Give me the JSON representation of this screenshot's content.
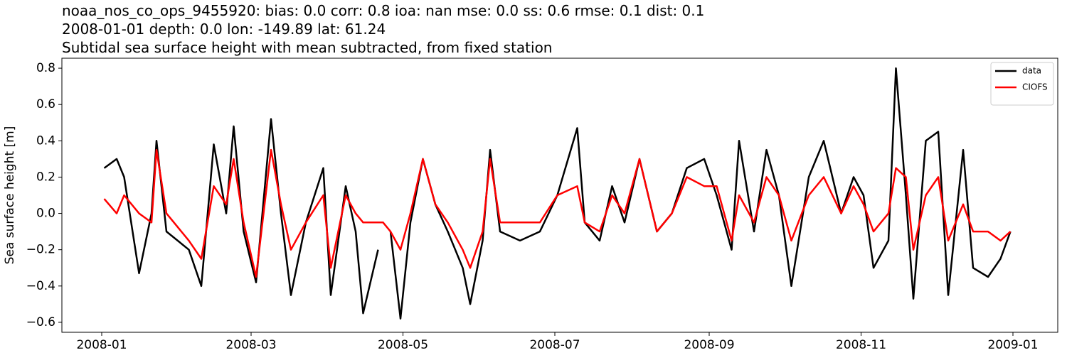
{
  "chart_data": {
    "type": "line",
    "title": [
      "noaa_nos_co_ops_9455920: bias: 0.0  corr: 0.8  ioa: nan  mse: 0.0  ss: 0.6  rmse: 0.1  dist: 0.1",
      "2008-01-01 depth: 0.0 lon: -149.89 lat: 61.24",
      "Subtidal sea surface height with mean subtracted, from fixed station"
    ],
    "y_label": "Sea surface height [m]",
    "x": [
      1,
      6,
      9,
      15,
      20,
      22,
      26,
      35,
      40,
      45,
      50,
      53,
      57,
      62,
      68,
      72,
      76,
      82,
      89,
      92,
      98,
      102,
      105,
      111,
      113,
      116,
      120,
      124,
      129,
      134,
      139,
      145,
      148,
      153,
      156,
      160,
      168,
      176,
      183,
      191,
      194,
      200,
      205,
      210,
      216,
      223,
      229,
      235,
      242,
      247,
      253,
      256,
      262,
      267,
      272,
      277,
      284,
      290,
      297,
      302,
      306,
      310,
      316,
      319,
      323,
      326,
      331,
      336,
      340,
      346,
      350,
      356,
      361,
      365
    ],
    "series": [
      {
        "name": "data",
        "color": "#000000",
        "values": [
          0.25,
          0.3,
          0.2,
          -0.33,
          0.0,
          0.4,
          -0.1,
          -0.2,
          -0.4,
          0.38,
          0.0,
          0.48,
          -0.1,
          -0.38,
          0.52,
          0.0,
          -0.45,
          -0.05,
          0.25,
          -0.45,
          0.15,
          -0.1,
          -0.55,
          -0.2,
          null,
          -0.1,
          -0.58,
          -0.05,
          0.3,
          0.05,
          -0.1,
          -0.3,
          -0.5,
          -0.15,
          0.35,
          -0.1,
          -0.15,
          -0.1,
          0.1,
          0.47,
          -0.05,
          -0.15,
          0.15,
          -0.05,
          0.3,
          -0.1,
          0.0,
          0.25,
          0.3,
          0.1,
          -0.2,
          0.4,
          -0.1,
          0.35,
          0.1,
          -0.4,
          0.2,
          0.4,
          0.0,
          0.2,
          0.1,
          -0.3,
          -0.15,
          0.8,
          0.1,
          -0.47,
          0.4,
          0.45,
          -0.45,
          0.35,
          -0.3,
          -0.35,
          -0.25,
          -0.1
        ]
      },
      {
        "name": "CIOFS",
        "color": "#ff0000",
        "values": [
          0.08,
          0.0,
          0.1,
          0.0,
          -0.05,
          0.35,
          0.0,
          -0.15,
          -0.25,
          0.15,
          0.05,
          0.3,
          -0.05,
          -0.35,
          0.35,
          0.05,
          -0.2,
          -0.05,
          0.1,
          -0.3,
          0.1,
          0.0,
          -0.05,
          -0.05,
          -0.05,
          -0.1,
          -0.2,
          0.0,
          0.3,
          0.05,
          -0.05,
          -0.2,
          -0.3,
          -0.1,
          0.3,
          -0.05,
          -0.05,
          -0.05,
          0.1,
          0.15,
          -0.05,
          -0.1,
          0.1,
          0.0,
          0.3,
          -0.1,
          0.0,
          0.2,
          0.15,
          0.15,
          -0.15,
          0.1,
          -0.05,
          0.2,
          0.1,
          -0.15,
          0.1,
          0.2,
          0.0,
          0.15,
          0.05,
          -0.1,
          0.0,
          0.25,
          0.2,
          -0.2,
          0.1,
          0.2,
          -0.15,
          0.05,
          -0.1,
          -0.1,
          -0.15,
          -0.1
        ]
      }
    ],
    "xlim": [
      -16,
      384
    ],
    "xticks": [
      {
        "value": 0,
        "label": "2008-01"
      },
      {
        "value": 60,
        "label": "2008-03"
      },
      {
        "value": 121,
        "label": "2008-05"
      },
      {
        "value": 182,
        "label": "2008-07"
      },
      {
        "value": 244,
        "label": "2008-09"
      },
      {
        "value": 305,
        "label": "2008-11"
      },
      {
        "value": 366,
        "label": "2009-01"
      }
    ],
    "ylim": [
      -0.655,
      0.855
    ],
    "yticks": [
      {
        "value": -0.6,
        "label": "−0.6"
      },
      {
        "value": -0.4,
        "label": "−0.4"
      },
      {
        "value": -0.2,
        "label": "−0.2"
      },
      {
        "value": 0,
        "label": "0.0"
      },
      0.2,
      0.4,
      0.6,
      0.8
    ],
    "legend": "upper right",
    "grid": false
  }
}
